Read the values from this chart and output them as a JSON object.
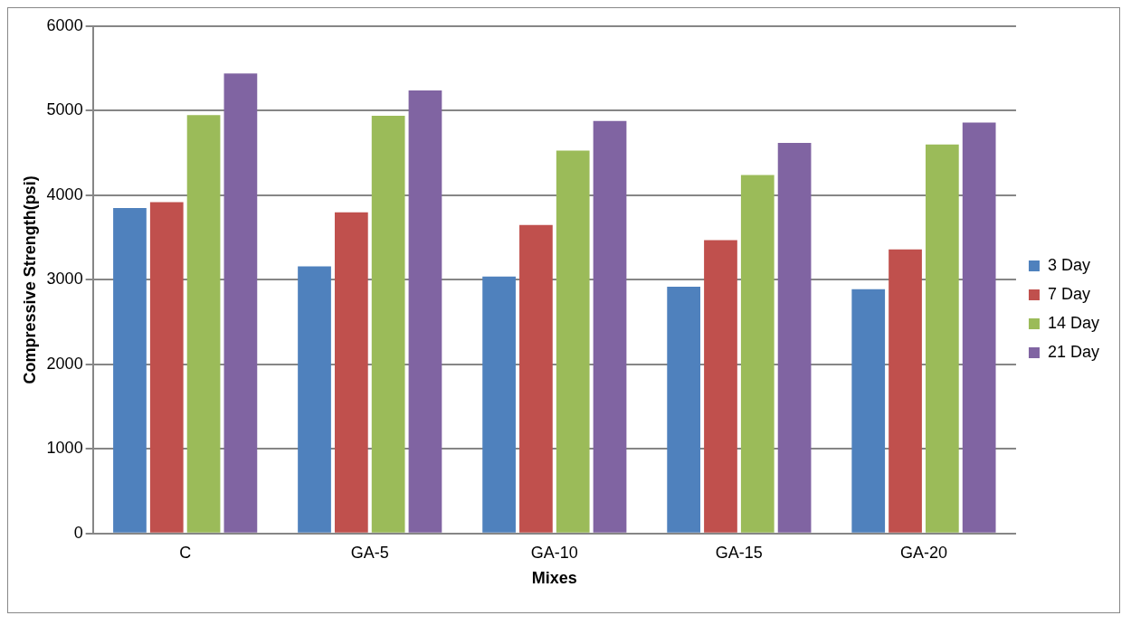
{
  "chart_data": {
    "type": "bar",
    "xlabel": "Mixes",
    "ylabel": "Compressive Strength(psi)",
    "categories": [
      "C",
      "GA-5",
      "GA-10",
      "GA-15",
      "GA-20"
    ],
    "series": [
      {
        "name": "3 Day",
        "color": "#4f81bd",
        "values": [
          3850,
          3160,
          3040,
          2920,
          2890
        ]
      },
      {
        "name": "7 Day",
        "color": "#c0504d",
        "values": [
          3920,
          3800,
          3650,
          3470,
          3360
        ]
      },
      {
        "name": "14 Day",
        "color": "#9bbb59",
        "values": [
          4950,
          4940,
          4530,
          4240,
          4600
        ]
      },
      {
        "name": "21 Day",
        "color": "#8064a2",
        "values": [
          5440,
          5240,
          4880,
          4620,
          4860
        ]
      }
    ],
    "ylim": [
      0,
      6000
    ],
    "yticks": [
      0,
      1000,
      2000,
      3000,
      4000,
      5000,
      6000
    ],
    "grid": "y",
    "legend": "right"
  }
}
